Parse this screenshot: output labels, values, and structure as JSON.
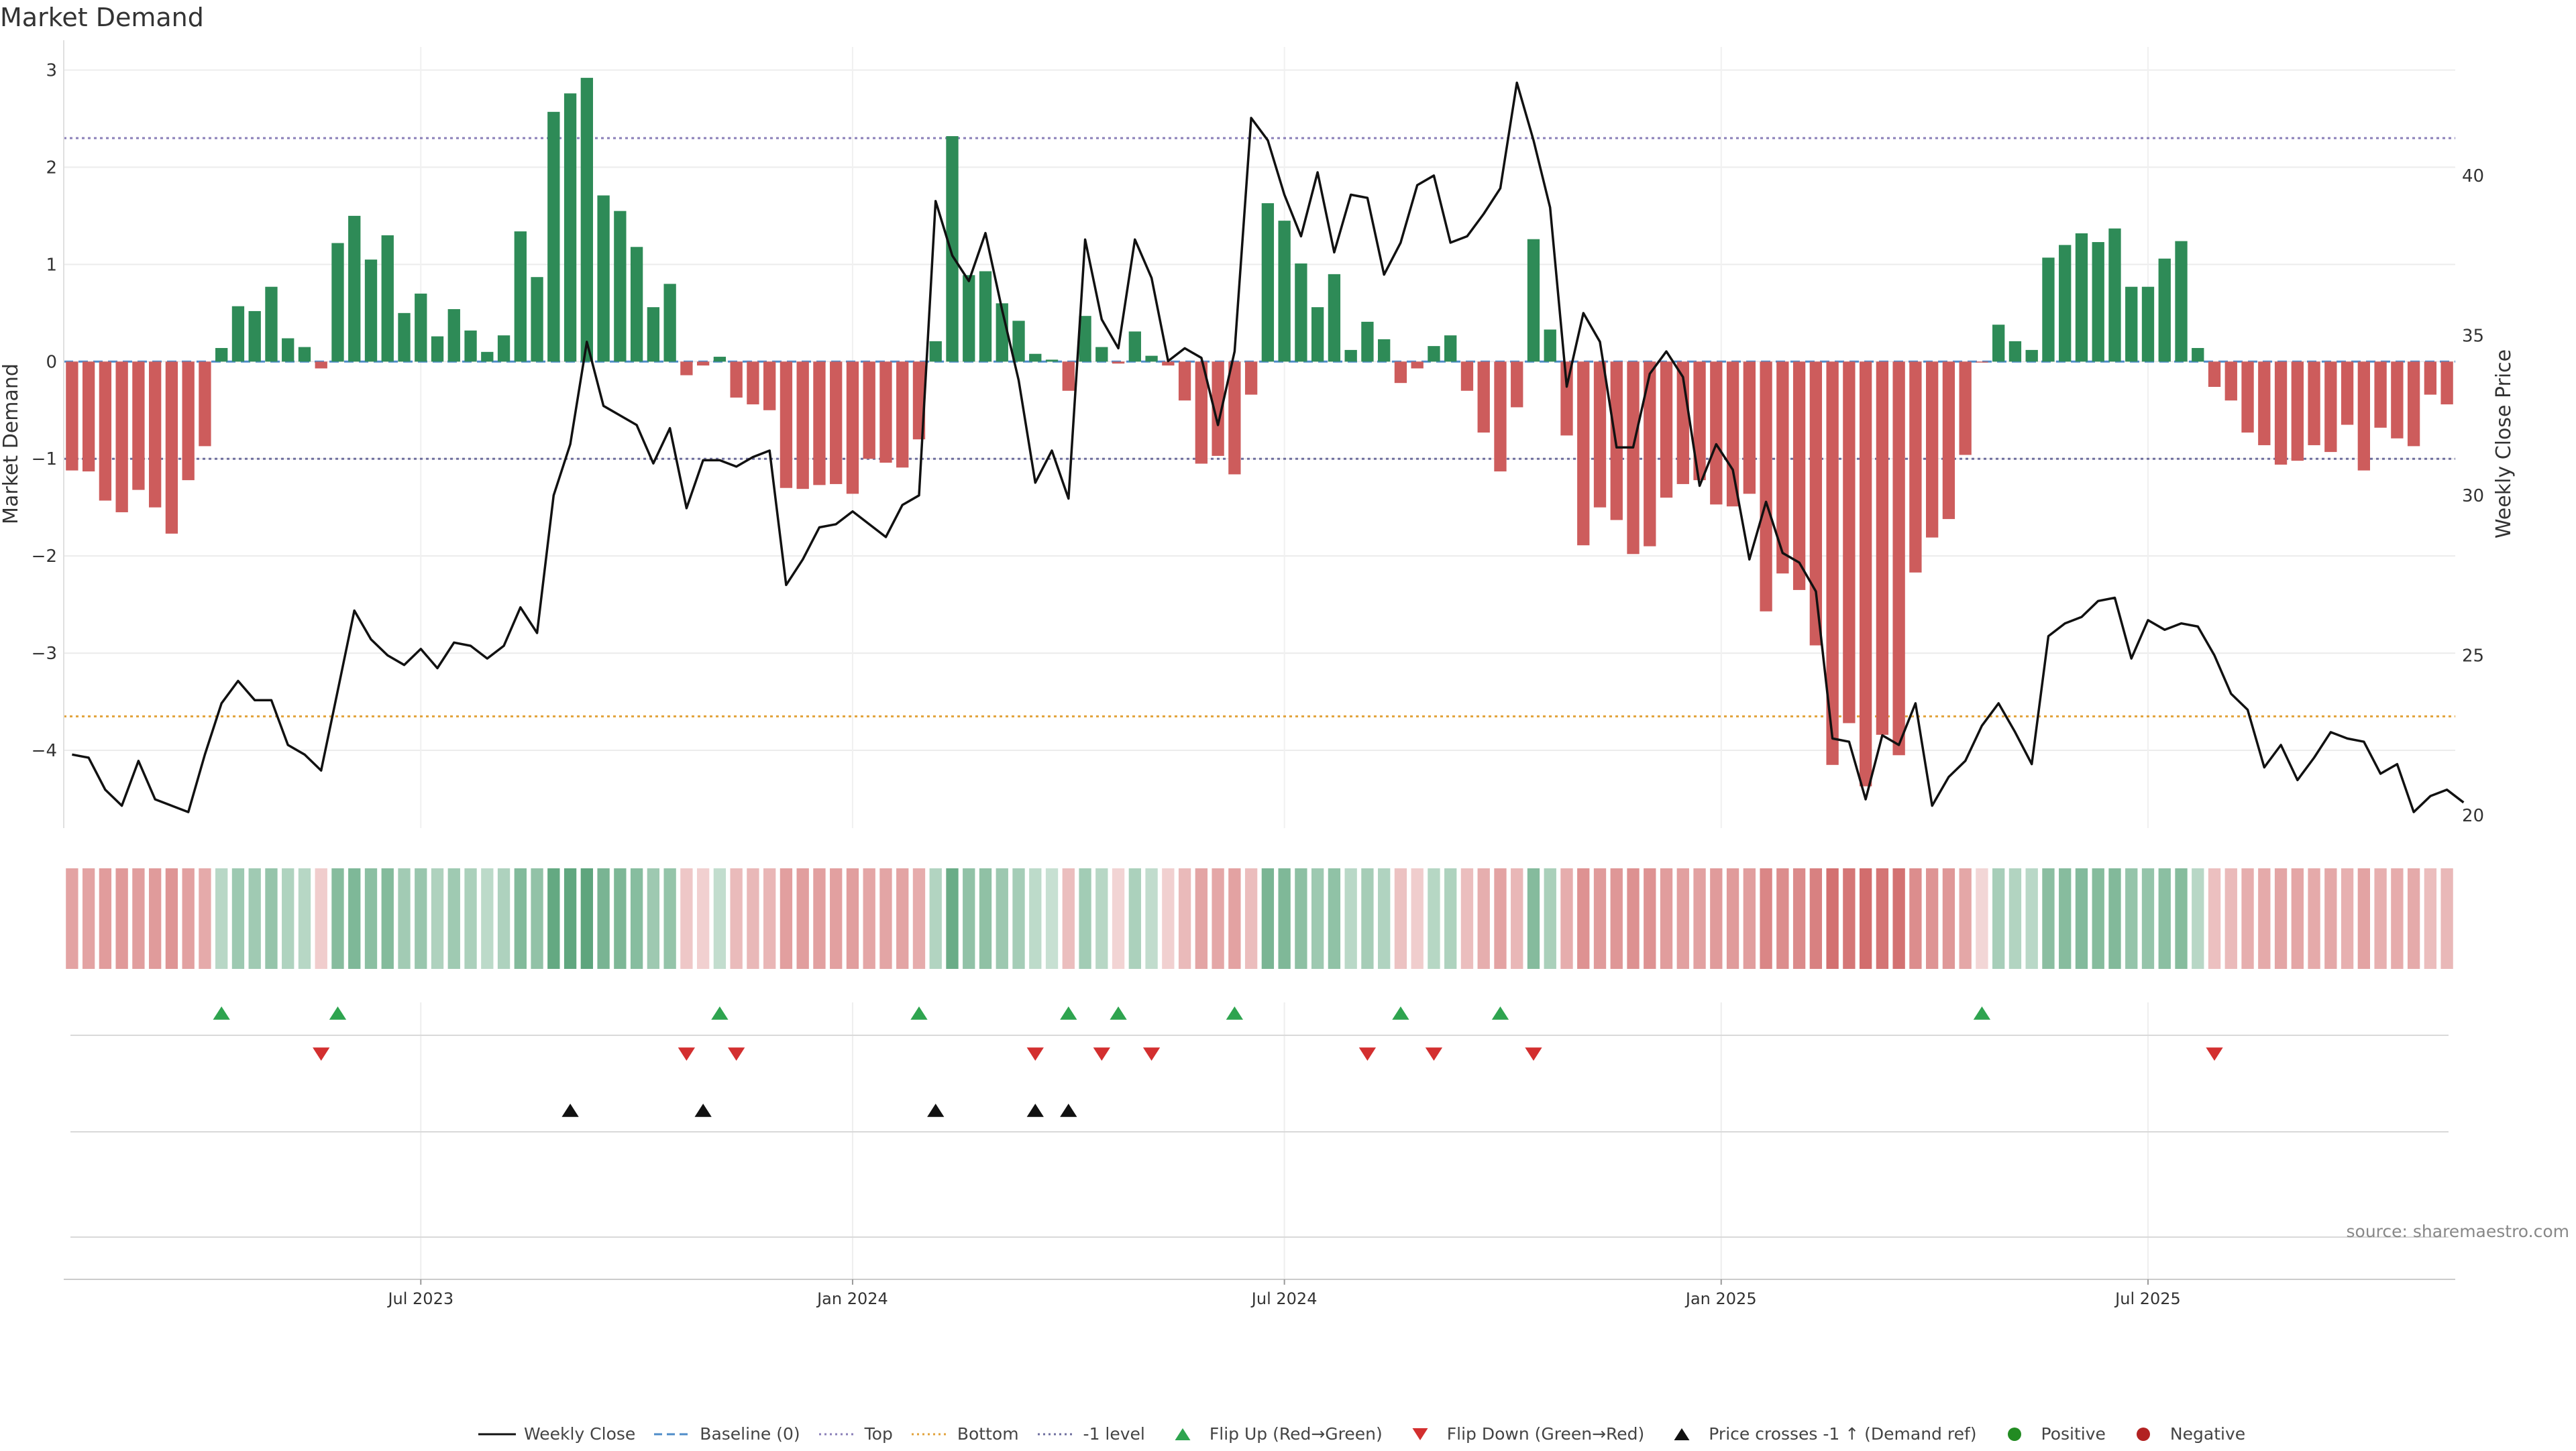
{
  "title": "Market Demand",
  "source": "source: sharemaestro.com",
  "colors": {
    "positive": "#2e8b57",
    "negative": "#cd5c5c",
    "price_line": "#111111",
    "top": "#8a7fb8",
    "bottom": "#e2a23a",
    "minus_one": "#6e6e9e",
    "baseline": "#4f8cc9",
    "flip_up": "#2ea44f",
    "flip_down": "#d32f2f",
    "cross": "#111111",
    "positive_dot": "#228b22",
    "negative_dot": "#b22222"
  },
  "legend": [
    {
      "label": "Weekly Close",
      "icon": "solid-line",
      "color": "#111111"
    },
    {
      "label": "Baseline (0)",
      "icon": "dashed-line",
      "color": "#4f8cc9"
    },
    {
      "label": "Top",
      "icon": "dotted-line",
      "color": "#8a7fb8"
    },
    {
      "label": "Bottom",
      "icon": "dotted-line",
      "color": "#e2a23a"
    },
    {
      "label": "-1 level",
      "icon": "dotted-line",
      "color": "#6e6e9e"
    },
    {
      "label": "Flip Up (Red→Green)",
      "icon": "triangle-up",
      "color": "#2ea44f"
    },
    {
      "label": "Flip Down (Green→Red)",
      "icon": "triangle-down",
      "color": "#d32f2f"
    },
    {
      "label": "Price crosses -1 ↑ (Demand ref)",
      "icon": "triangle-up",
      "color": "#111111"
    },
    {
      "label": "Positive",
      "icon": "dot",
      "color": "#228b22"
    },
    {
      "label": "Negative",
      "icon": "dot",
      "color": "#b22222"
    }
  ],
  "chart_data": {
    "type": "bar",
    "y_left_label": "Market Demand",
    "y_right_label": "Weekly Close Price",
    "y_left_range": [
      -4.8,
      3.1
    ],
    "y_right_range": [
      19.6,
      43.6
    ],
    "y_left_ticks": [
      "3",
      "2",
      "1",
      "0",
      "−1",
      "−2",
      "−3",
      "−4"
    ],
    "y_left_tick_values": [
      3,
      2,
      1,
      0,
      -1,
      -2,
      -3,
      -4
    ],
    "y_right_ticks": [
      "40",
      "35",
      "30",
      "25",
      "20"
    ],
    "y_right_tick_values": [
      40,
      35,
      30,
      25,
      20
    ],
    "x_ticks": [
      "Jul 2023",
      "Jan 2024",
      "Jul 2024",
      "Jan 2025",
      "Jul 2025"
    ],
    "x_tick_weeks": [
      21,
      47,
      73,
      99.3,
      125
    ],
    "reference_lines": {
      "top": 2.3,
      "bottom": -3.65,
      "minus_one": -1.0,
      "baseline": 0
    },
    "demand": [
      -1.12,
      -1.13,
      -1.43,
      -1.55,
      -1.32,
      -1.5,
      -1.77,
      -1.22,
      -0.87,
      0.14,
      0.57,
      0.52,
      0.77,
      0.24,
      0.15,
      -0.07,
      1.22,
      1.5,
      1.05,
      1.3,
      0.5,
      0.7,
      0.26,
      0.54,
      0.32,
      0.1,
      0.27,
      1.34,
      0.87,
      2.57,
      2.76,
      2.92,
      1.71,
      1.55,
      1.18,
      0.56,
      0.8,
      -0.14,
      -0.04,
      0.05,
      -0.37,
      -0.44,
      -0.5,
      -1.3,
      -1.31,
      -1.27,
      -1.26,
      -1.36,
      -1.0,
      -1.04,
      -1.09,
      -0.8,
      0.21,
      2.32,
      0.89,
      0.93,
      0.6,
      0.42,
      0.08,
      0.02,
      -0.3,
      0.47,
      0.15,
      -0.02,
      0.31,
      0.06,
      -0.04,
      -0.4,
      -1.05,
      -0.97,
      -1.16,
      -0.34,
      1.63,
      1.45,
      1.01,
      0.56,
      0.9,
      0.12,
      0.41,
      0.23,
      -0.22,
      -0.07,
      0.16,
      0.27,
      -0.3,
      -0.73,
      -1.13,
      -0.47,
      1.26,
      0.33,
      -0.76,
      -1.89,
      -1.5,
      -1.63,
      -1.98,
      -1.9,
      -1.4,
      -1.26,
      -1.22,
      -1.47,
      -1.49,
      -1.36,
      -2.57,
      -2.18,
      -2.35,
      -2.92,
      -4.15,
      -3.72,
      -4.37,
      -3.84,
      -4.05,
      -2.17,
      -1.81,
      -1.62,
      -0.96,
      -0.01,
      0.38,
      0.21,
      0.12,
      1.07,
      1.2,
      1.32,
      1.23,
      1.37,
      0.77,
      0.77,
      1.06,
      1.24,
      0.14,
      -0.26,
      -0.4,
      -0.73,
      -0.86,
      -1.06,
      -1.02,
      -0.86,
      -0.93,
      -0.65,
      -1.12,
      -0.68,
      -0.79,
      -0.87,
      -0.34,
      -0.44
    ],
    "weekly_close": [
      21.9,
      21.8,
      20.8,
      20.3,
      21.7,
      20.5,
      20.3,
      20.1,
      21.9,
      23.5,
      24.2,
      23.6,
      23.6,
      22.2,
      21.9,
      21.4,
      23.9,
      26.4,
      25.5,
      25.0,
      24.7,
      25.2,
      24.6,
      25.4,
      25.3,
      24.9,
      25.3,
      26.5,
      25.7,
      30.0,
      31.6,
      34.8,
      32.8,
      32.5,
      32.2,
      31.0,
      32.1,
      29.6,
      31.1,
      31.1,
      30.9,
      31.2,
      31.4,
      27.2,
      28.0,
      29.0,
      29.1,
      29.5,
      29.1,
      28.7,
      29.7,
      30.0,
      39.2,
      37.5,
      36.7,
      38.2,
      35.8,
      33.6,
      30.4,
      31.4,
      29.9,
      38.0,
      35.5,
      34.6,
      38.0,
      36.8,
      34.2,
      34.6,
      34.3,
      32.2,
      34.5,
      41.8,
      41.1,
      39.4,
      38.1,
      40.1,
      37.6,
      39.4,
      39.3,
      36.9,
      37.9,
      39.7,
      40.0,
      37.9,
      38.1,
      38.8,
      39.6,
      42.9,
      41.1,
      39.0,
      33.4,
      35.7,
      34.8,
      31.5,
      31.5,
      33.8,
      34.5,
      33.7,
      30.3,
      31.6,
      30.8,
      28.0,
      29.8,
      28.2,
      27.9,
      27.0,
      22.4,
      22.3,
      20.5,
      22.5,
      22.2,
      23.5,
      20.3,
      21.2,
      21.7,
      22.8,
      23.5,
      22.6,
      21.6,
      25.6,
      26.0,
      26.2,
      26.7,
      26.8,
      24.9,
      26.1,
      25.8,
      26.0,
      25.9,
      25.0,
      23.8,
      23.3,
      21.5,
      22.2,
      21.1,
      21.8,
      22.6,
      22.4,
      22.3,
      21.3,
      21.6,
      20.1,
      20.6,
      20.8,
      20.4
    ],
    "flip_up_weeks": [
      9,
      16,
      39,
      51,
      60,
      63,
      70,
      80,
      86,
      115
    ],
    "flip_down_weeks": [
      15,
      37,
      40,
      58,
      62,
      65,
      78,
      82,
      88,
      129
    ],
    "price_cross_weeks": [
      30,
      38,
      52,
      58,
      60
    ]
  }
}
